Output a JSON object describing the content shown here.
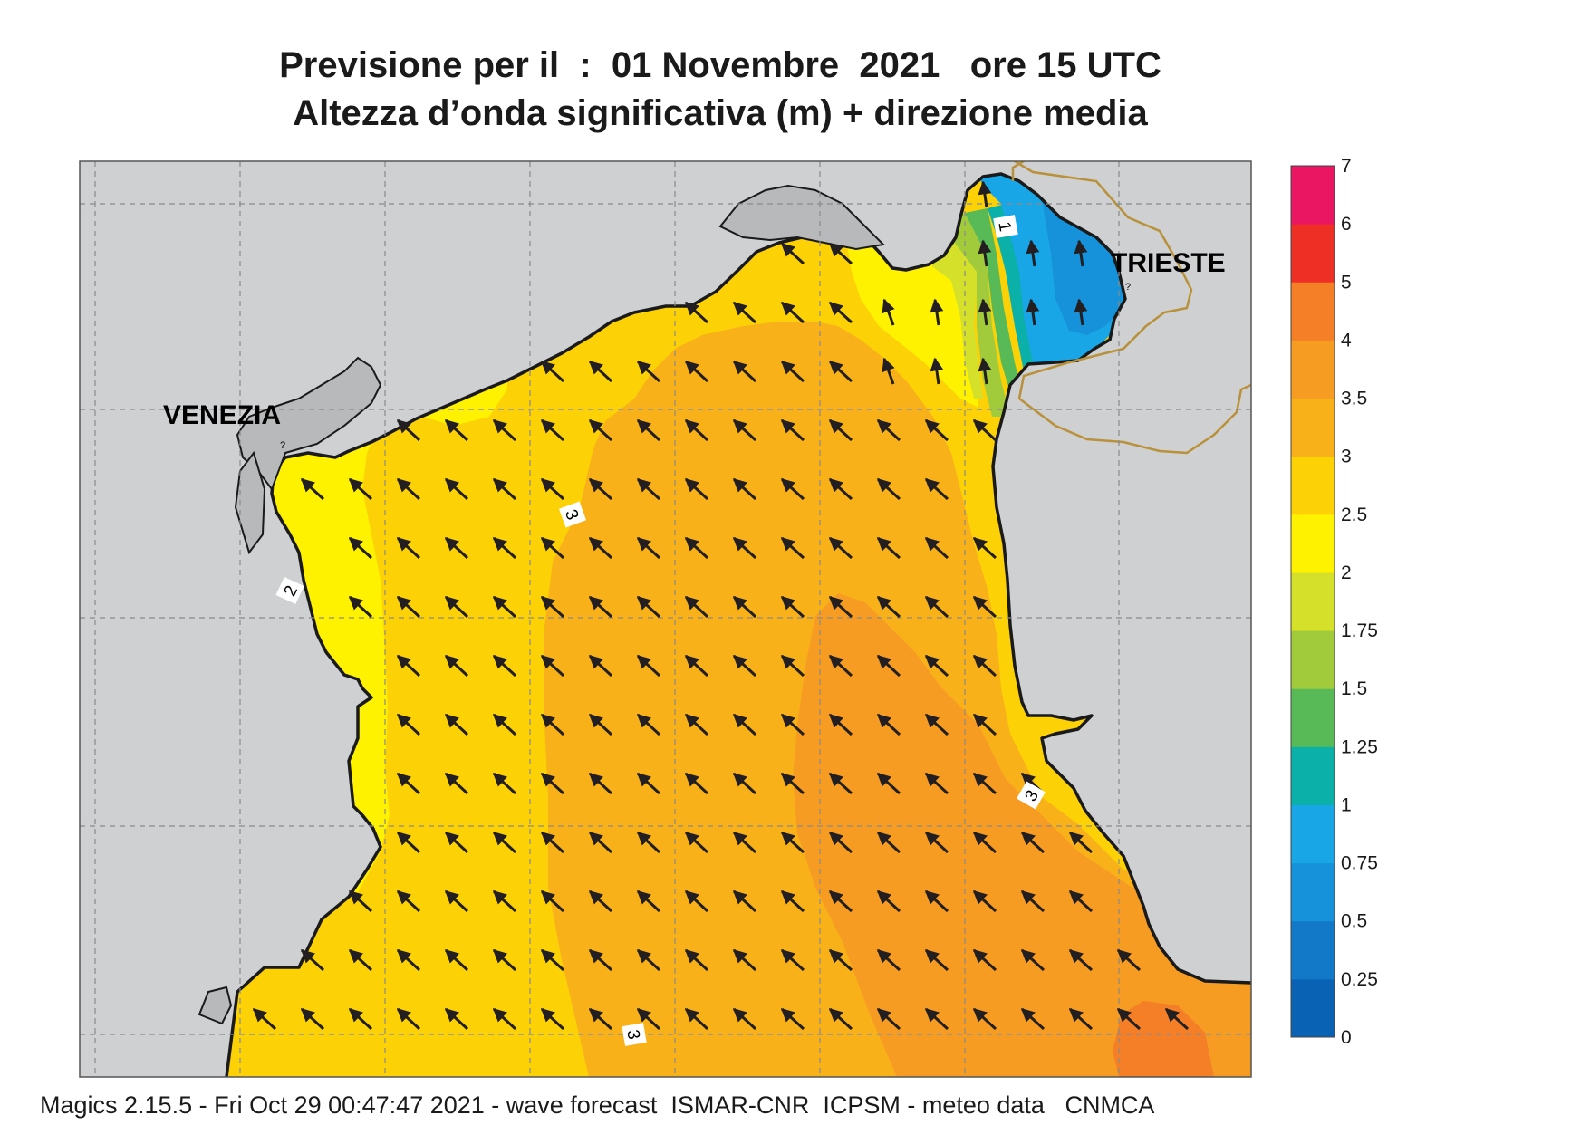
{
  "title": {
    "line1": "Previsione per il  :  01 Novembre  2021   ore 15 UTC",
    "line2": "Altezza d’onda significativa (m) + direzione media"
  },
  "places": {
    "venezia": "VENEZIA",
    "trieste": "TRIESTE",
    "marker": "?"
  },
  "contour_labels": [
    "1",
    "2",
    "3",
    "3",
    "3"
  ],
  "legend": {
    "title": "",
    "levels": [
      "0",
      "0.25",
      "0.5",
      "0.75",
      "1",
      "1.25",
      "1.5",
      "1.75",
      "2",
      "2.5",
      "3",
      "3.5",
      "4",
      "5",
      "6",
      "7"
    ],
    "colors": [
      "#0a62b5",
      "#1179c8",
      "#1592d9",
      "#19a6e6",
      "#0bb0a8",
      "#58ba57",
      "#a2cb3c",
      "#d4e02a",
      "#fff200",
      "#fcd206",
      "#f9b11a",
      "#f79c22",
      "#f47f27",
      "#ed2f26",
      "#ea1662"
    ]
  },
  "colors": {
    "land": "#cfd0d2",
    "sea_base": "#fcd206",
    "arrow": "#231f20",
    "coast": "#1a1a1a",
    "border": "#b8913a"
  },
  "arrow_direction": "wave direction toward north-west (north-north-west near Trieste)",
  "footer": "Magics 2.15.5 - Fri Oct 29 00:47:47 2021 - wave forecast  ISMAR-CNR  ICPSM - meteo data   CNMCA"
}
